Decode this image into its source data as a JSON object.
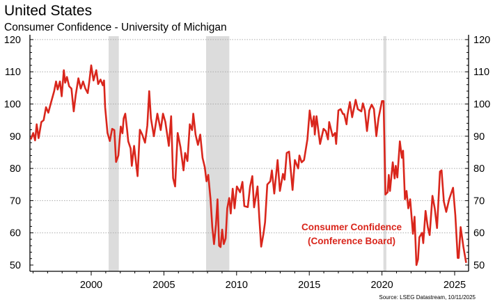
{
  "header": {
    "title": "United States",
    "subtitle": "Consumer Confidence - University of Michigan"
  },
  "source": "Source: LSEG Datastream, 10/11/2025",
  "chart_data": {
    "type": "line",
    "title": "United States",
    "subtitle": "Consumer Confidence - University of Michigan",
    "xlabel": "",
    "ylabel": "",
    "xlim": [
      1995.8,
      2026.0
    ],
    "ylim": [
      50,
      120
    ],
    "x_ticks": [
      "2000",
      "2005",
      "2010",
      "2015",
      "2020",
      "2025"
    ],
    "y_ticks": [
      "50",
      "60",
      "70",
      "80",
      "90",
      "100",
      "110",
      "120"
    ],
    "y_axis_both_sides": true,
    "grid": "horizontal dotted",
    "line_color": "#d9261c",
    "recession_color": "#dcdcdc",
    "recessions": [
      [
        2001.2,
        2001.9
      ],
      [
        2007.9,
        2009.5
      ],
      [
        2020.1,
        2020.3
      ]
    ],
    "annotation": [
      "Consumer Confidence",
      "(Conference Board)"
    ],
    "series": [
      {
        "x": [
          1995.85,
          1996.01,
          1996.14,
          1996.25,
          1996.38,
          1996.57,
          1996.73,
          1996.89,
          1997.05,
          1997.21,
          1997.45,
          1997.58,
          1997.69,
          1997.85,
          1997.97,
          1998.12,
          1998.21,
          1998.33,
          1998.48,
          1998.64,
          1998.8,
          1998.93,
          1999.12,
          1999.28,
          1999.44,
          1999.6,
          1999.76,
          1999.87,
          2000.0,
          2000.16,
          2000.35,
          2000.48,
          2000.64,
          2000.8,
          2000.88,
          2000.96,
          2001.12,
          2001.28,
          2001.44,
          2001.59,
          2001.71,
          2001.87,
          2002.03,
          2002.15,
          2002.23,
          2002.34,
          2002.47,
          2002.55,
          2002.71,
          2002.79,
          2002.95,
          2003.19,
          2003.35,
          2003.51,
          2003.7,
          2003.86,
          2003.99,
          2004.11,
          2004.31,
          2004.55,
          2004.78,
          2004.94,
          2005.1,
          2005.34,
          2005.5,
          2005.63,
          2005.77,
          2005.95,
          2006.14,
          2006.35,
          2006.46,
          2006.62,
          2006.78,
          2006.94,
          2007.02,
          2007.18,
          2007.34,
          2007.5,
          2007.66,
          2007.81,
          2007.93,
          2008.05,
          2008.21,
          2008.33,
          2008.45,
          2008.58,
          2008.69,
          2008.8,
          2008.9,
          2009.01,
          2009.12,
          2009.25,
          2009.36,
          2009.49,
          2009.6,
          2009.73,
          2009.86,
          2010.02,
          2010.24,
          2010.4,
          2010.53,
          2010.77,
          2010.93,
          2011.08,
          2011.2,
          2011.44,
          2011.56,
          2011.69,
          2011.85,
          2011.96,
          2012.11,
          2012.32,
          2012.43,
          2012.59,
          2012.82,
          2012.98,
          2013.19,
          2013.3,
          2013.45,
          2013.61,
          2013.85,
          2014.01,
          2014.24,
          2014.32,
          2014.48,
          2014.64,
          2014.87,
          2015.03,
          2015.19,
          2015.32,
          2015.38,
          2015.5,
          2015.74,
          2015.98,
          2016.14,
          2016.29,
          2016.37,
          2016.61,
          2016.77,
          2016.85,
          2017.0,
          2017.16,
          2017.32,
          2017.4,
          2017.56,
          2017.63,
          2017.79,
          2017.95,
          2018.19,
          2018.34,
          2018.58,
          2018.69,
          2018.82,
          2018.97,
          2019.13,
          2019.29,
          2019.45,
          2019.61,
          2019.76,
          2020.0,
          2020.11,
          2020.24,
          2020.39,
          2020.47,
          2020.55,
          2020.74,
          2020.87,
          2020.95,
          2021.06,
          2021.23,
          2021.37,
          2021.45,
          2021.58,
          2021.69,
          2021.81,
          2021.94,
          2022.13,
          2022.24,
          2022.37,
          2022.48,
          2022.57,
          2022.76,
          2022.84,
          2023.0,
          2023.15,
          2023.28,
          2023.47,
          2023.63,
          2023.79,
          2023.99,
          2024.1,
          2024.26,
          2024.42,
          2024.62,
          2024.89,
          2025.05,
          2025.21,
          2025.28,
          2025.41,
          2025.6,
          2025.79
        ],
        "values": [
          89,
          91,
          88.7,
          93.7,
          89.4,
          94.4,
          95,
          99,
          97.3,
          100,
          104,
          107,
          104.5,
          107,
          102.4,
          110.5,
          106.6,
          108.4,
          105.5,
          104.8,
          97.7,
          102.7,
          108,
          104.8,
          107,
          104.8,
          103.4,
          107,
          112,
          107.3,
          110.5,
          106.2,
          107.6,
          105.8,
          107.3,
          99,
          91,
          88.5,
          92.3,
          91.9,
          82,
          84,
          93,
          90.9,
          95.5,
          97,
          91.9,
          88.4,
          86.2,
          80.8,
          87,
          77.6,
          92,
          90.5,
          88,
          93.3,
          104,
          95.5,
          90,
          97,
          91.9,
          97,
          94.4,
          87,
          96.2,
          77,
          74.4,
          91,
          86.6,
          79.4,
          84.8,
          82.3,
          93.7,
          91.9,
          97,
          90.5,
          87.3,
          90.5,
          83.3,
          80.4,
          76,
          78,
          70.4,
          61.8,
          56.5,
          62.6,
          70.4,
          56,
          55.6,
          61,
          56.5,
          58.3,
          67.6,
          70.8,
          66,
          73.7,
          67.6,
          74.4,
          72.6,
          75.8,
          68.3,
          68,
          74.4,
          77.6,
          67.9,
          74.4,
          64.7,
          55.7,
          59.7,
          63.3,
          75,
          76,
          79.4,
          72.2,
          82.6,
          73,
          78.3,
          76.5,
          84.8,
          85.2,
          73.3,
          82.6,
          80,
          84,
          81.9,
          82.6,
          89,
          98,
          93,
          96.2,
          90.5,
          96.2,
          87.6,
          92.3,
          91.6,
          89,
          94.4,
          90,
          91,
          87.6,
          98,
          98.4,
          96.9,
          96.9,
          93.7,
          96.6,
          100.6,
          95.9,
          101.3,
          98.4,
          97.7,
          100.2,
          98,
          91.6,
          98,
          99.8,
          98.4,
          90,
          95.5,
          100.9,
          100.9,
          71.9,
          72.6,
          78,
          73,
          81.9,
          76.9,
          80.8,
          77.2,
          88.4,
          83.3,
          85.5,
          70.4,
          73,
          67.6,
          70.4,
          59.7,
          65,
          50,
          51.8,
          58.6,
          60,
          56.8,
          66.8,
          61.8,
          59.3,
          71.5,
          67.6,
          61.5,
          79,
          79.4,
          69.7,
          66.5,
          70.4,
          74,
          65.4,
          52.2,
          52.2,
          61.8,
          55.7,
          50.7
        ]
      }
    ]
  }
}
